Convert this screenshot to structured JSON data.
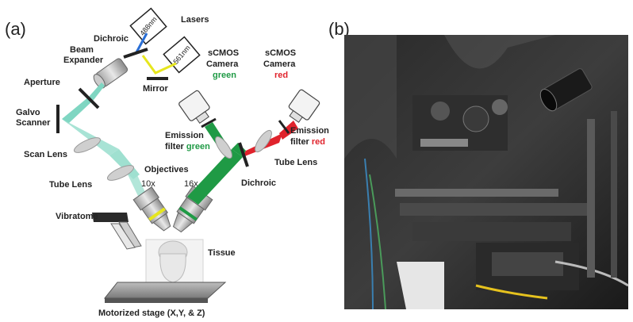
{
  "panel_a": {
    "letter": "(a)",
    "lasers": {
      "label": "Lasers",
      "wl1": "488nm",
      "wl2": "561nm"
    },
    "dichroic_top": "Dichroic",
    "beam_expander": {
      "line1": "Beam",
      "line2": "Expander"
    },
    "mirror": "Mirror",
    "aperture": "Aperture",
    "galvo": {
      "line1": "Galvo",
      "line2": "Scanner"
    },
    "scan_lens": "Scan Lens",
    "tube_lens_left": "Tube Lens",
    "objectives": "Objectives",
    "mag_left": "10x",
    "mag_right": "16x",
    "cam_green": {
      "line1": "sCMOS",
      "line2": "Camera",
      "line3": "green"
    },
    "cam_red": {
      "line1": "sCMOS",
      "line2": "Camera",
      "line3": "red"
    },
    "em_green": {
      "line1": "Emission",
      "line2_prefix": "filter ",
      "line2_color": "green"
    },
    "em_red": {
      "line1": "Emission",
      "line2_prefix": "filter ",
      "line2_color": "red"
    },
    "tube_lens_right": "Tube Lens",
    "dichroic_right": "Dichroic",
    "vibratome": "Vibratome",
    "tissue": "Tissue",
    "stage": "Motorized stage (X,Y, & Z)"
  },
  "panel_b": {
    "letter": "(b)"
  },
  "colors": {
    "green": "#1f9a45",
    "red": "#e0232c",
    "teal": "#7fd6c2",
    "yellow": "#e6e61e",
    "blue": "#2a6fd6",
    "dark": "#222222"
  }
}
